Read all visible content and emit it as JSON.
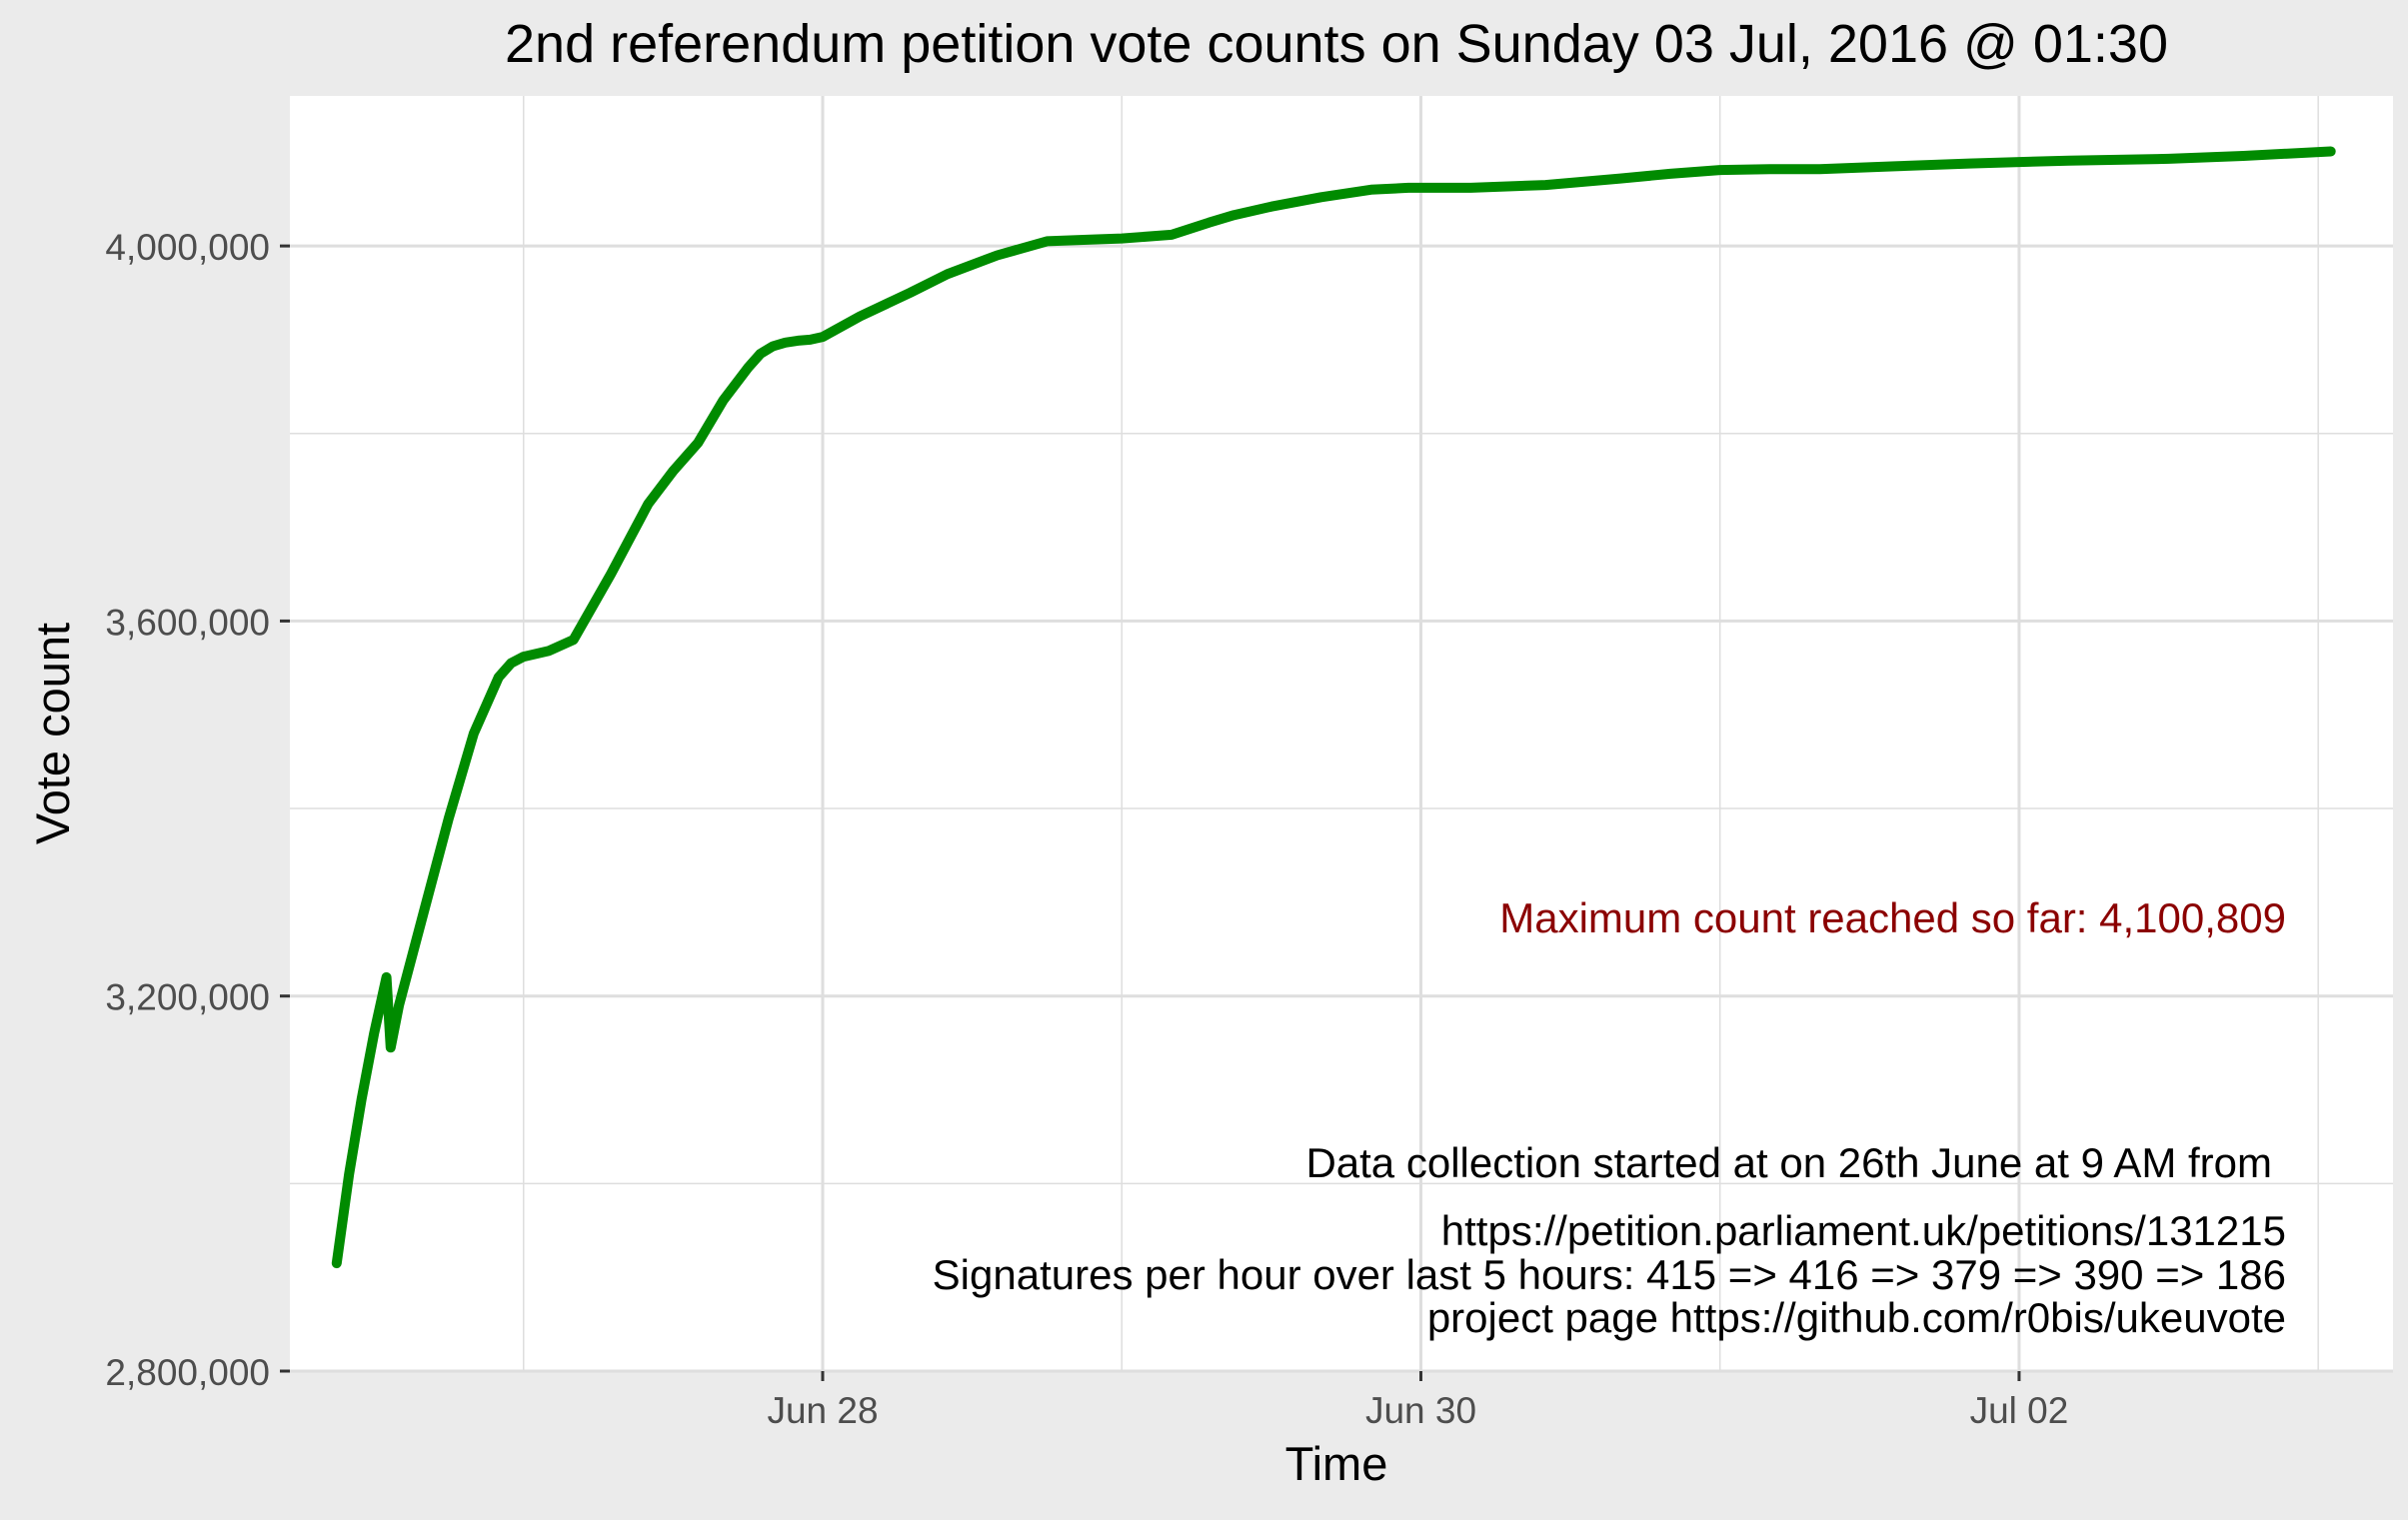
{
  "chart_data": {
    "type": "line",
    "title": "2nd referendum petition vote counts on Sunday 03 Jul, 2016 @ 01:30",
    "xlabel": "Time",
    "ylabel": "Vote count",
    "x_unit": "date-time",
    "xlim": [
      "2016-06-26 05:15",
      "2016-07-03 06:00"
    ],
    "ylim": [
      2800000,
      4160000
    ],
    "x_ticks": [
      {
        "value": "2016-06-28 00:00",
        "label": "Jun 28"
      },
      {
        "value": "2016-06-30 00:00",
        "label": "Jun 30"
      },
      {
        "value": "2016-07-02 00:00",
        "label": "Jul 02"
      }
    ],
    "y_ticks": [
      {
        "value": 2800000,
        "label": "2,800,000"
      },
      {
        "value": 3200000,
        "label": "3,200,000"
      },
      {
        "value": 3600000,
        "label": "3,600,000"
      },
      {
        "value": 4000000,
        "label": "4,000,000"
      }
    ],
    "grid": true,
    "series": [
      {
        "color": "#008b00",
        "x": [
          "2016-06-26 09:00",
          "2016-06-26 10:00",
          "2016-06-26 11:00",
          "2016-06-26 12:00",
          "2016-06-26 13:00",
          "2016-06-26 13:20",
          "2016-06-26 14:00",
          "2016-06-26 16:00",
          "2016-06-26 18:00",
          "2016-06-26 20:00",
          "2016-06-26 22:00",
          "2016-06-26 23:00",
          "2016-06-27 00:00",
          "2016-06-27 02:00",
          "2016-06-27 04:00",
          "2016-06-27 07:00",
          "2016-06-27 09:00",
          "2016-06-27 10:00",
          "2016-06-27 12:00",
          "2016-06-27 14:00",
          "2016-06-27 16:00",
          "2016-06-27 18:00",
          "2016-06-27 19:00",
          "2016-06-27 20:00",
          "2016-06-27 21:00",
          "2016-06-27 22:00",
          "2016-06-27 23:00",
          "2016-06-28 00:00",
          "2016-06-28 03:00",
          "2016-06-28 07:00",
          "2016-06-28 10:00",
          "2016-06-28 14:00",
          "2016-06-28 18:00",
          "2016-06-28 22:00",
          "2016-06-29 00:00",
          "2016-06-29 04:00",
          "2016-06-29 07:00",
          "2016-06-29 09:00",
          "2016-06-29 12:00",
          "2016-06-29 16:00",
          "2016-06-29 20:00",
          "2016-06-29 23:00",
          "2016-06-30 04:00",
          "2016-06-30 10:00",
          "2016-06-30 16:00",
          "2016-06-30 20:00",
          "2016-07-01 00:00",
          "2016-07-01 04:00",
          "2016-07-01 08:00",
          "2016-07-01 14:00",
          "2016-07-01 20:00",
          "2016-07-02 04:00",
          "2016-07-02 12:00",
          "2016-07-02 18:00",
          "2016-07-03 01:00"
        ],
        "values": [
          2915000,
          3010000,
          3090000,
          3160000,
          3220000,
          3145000,
          3190000,
          3290000,
          3390000,
          3480000,
          3540000,
          3555000,
          3562000,
          3568000,
          3580000,
          3650000,
          3700000,
          3725000,
          3760000,
          3790000,
          3835000,
          3870000,
          3885000,
          3893000,
          3897000,
          3899000,
          3900000,
          3903000,
          3925000,
          3950000,
          3970000,
          3990000,
          4005000,
          4007000,
          4008000,
          4012000,
          4025000,
          4033000,
          4042000,
          4052000,
          4060000,
          4062000,
          4062000,
          4065000,
          4072000,
          4077000,
          4081000,
          4082000,
          4082000,
          4085000,
          4088000,
          4091000,
          4093000,
          4096000,
          4100809
        ]
      }
    ],
    "annotations": {
      "max": "Maximum count reached so far:  4,100,809",
      "info_line1": "Data collection started at on 26th June at 9 AM from",
      "info_line2": "https://petition.parliament.uk/petitions/131215",
      "info_line3": "Signatures per hour over last 5 hours:  415 => 416 => 379 => 390 => 186",
      "info_line4": "project page https://github.com/r0bis/ukeuvote"
    },
    "colors": {
      "background": "#ebebeb",
      "panel": "#ffffff",
      "grid": "#dedede",
      "line": "#008b00",
      "annotation_max": "#8b0000",
      "text": "#000000",
      "tick_text": "#4d4d4d"
    }
  }
}
